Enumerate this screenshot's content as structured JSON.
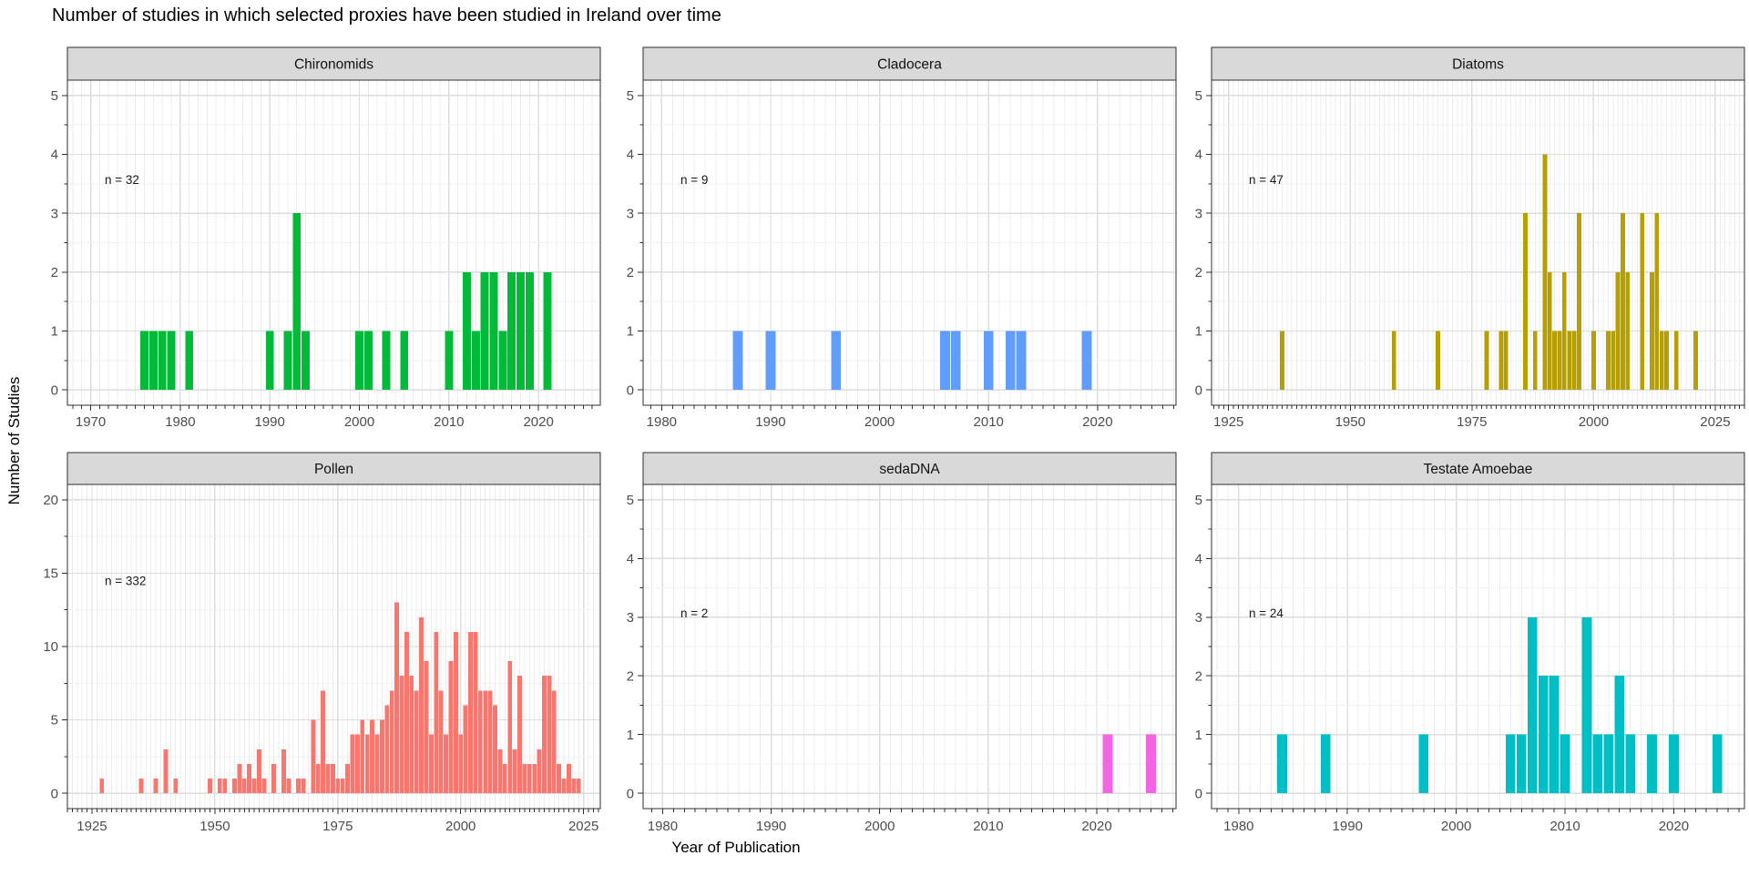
{
  "title": "Number of studies in which selected proxies have been studied in Ireland over time",
  "axes": {
    "x_title": "Year of Publication",
    "y_title": "Number of Studies"
  },
  "theme": {
    "strip_bg": "#D9D9D9",
    "panel_bg": "#FFFFFF",
    "grid_major": "#DEDEDE",
    "grid_minor_v": "#ECECEC",
    "grid_minor_h": "#F2F2F2",
    "panel_border": "#2F2F2F",
    "tick": "#2F2F2F",
    "axis_text": "#4D4D4D",
    "text": "#111111"
  },
  "chart_data": [
    {
      "type": "bar",
      "title": "Chironomids",
      "annotation": "n = 32",
      "annotation_pos": {
        "x_frac": 0.07,
        "y_value": 3.5
      },
      "color": "#00BA38",
      "x": [
        1976,
        1977,
        1978,
        1979,
        1981,
        1990,
        1992,
        1993,
        1994,
        2000,
        2001,
        2003,
        2005,
        2010,
        2012,
        2013,
        2014,
        2015,
        2016,
        2017,
        2018,
        2019,
        2021
      ],
      "values": [
        1,
        1,
        1,
        1,
        1,
        1,
        1,
        3,
        1,
        1,
        1,
        1,
        1,
        1,
        2,
        1,
        2,
        2,
        1,
        2,
        2,
        2,
        2
      ],
      "xticks": [
        1970,
        1980,
        1990,
        2000,
        2010,
        2020
      ],
      "xlim": [
        1967.4,
        2026.9
      ],
      "yticks": [
        0,
        1,
        2,
        3,
        4,
        5
      ],
      "ylim": [
        -0.26,
        5.26
      ],
      "grid": true
    },
    {
      "type": "bar",
      "title": "Cladocera",
      "annotation": "n = 9",
      "annotation_pos": {
        "x_frac": 0.07,
        "y_value": 3.5
      },
      "color": "#619CFF",
      "x": [
        1987,
        1990,
        1996,
        2006,
        2007,
        2010,
        2012,
        2013,
        2019
      ],
      "values": [
        1,
        1,
        1,
        1,
        1,
        1,
        1,
        1,
        1
      ],
      "xticks": [
        1980,
        1990,
        2000,
        2010,
        2020
      ],
      "xlim": [
        1978.3,
        2027.2
      ],
      "yticks": [
        0,
        1,
        2,
        3,
        4,
        5
      ],
      "ylim": [
        -0.26,
        5.26
      ],
      "grid": true
    },
    {
      "type": "bar",
      "title": "Diatoms",
      "annotation": "n = 47",
      "annotation_pos": {
        "x_frac": 0.07,
        "y_value": 3.5
      },
      "color": "#B79F00",
      "x": [
        1936,
        1959,
        1968,
        1978,
        1981,
        1982,
        1986,
        1988,
        1990,
        1991,
        1992,
        1993,
        1994,
        1995,
        1996,
        1997,
        2000,
        2003,
        2004,
        2005,
        2006,
        2007,
        2010,
        2012,
        2013,
        2014,
        2015,
        2017,
        2021
      ],
      "values": [
        1,
        1,
        1,
        1,
        1,
        1,
        3,
        1,
        4,
        2,
        1,
        1,
        2,
        1,
        1,
        3,
        1,
        1,
        1,
        2,
        3,
        2,
        3,
        2,
        3,
        1,
        1,
        1,
        1
      ],
      "xticks": [
        1925,
        1950,
        1975,
        2000,
        2025
      ],
      "xlim": [
        1921.5,
        2031
      ],
      "yticks": [
        0,
        1,
        2,
        3,
        4,
        5
      ],
      "ylim": [
        -0.26,
        5.26
      ],
      "grid": true
    },
    {
      "type": "bar",
      "title": "Pollen",
      "annotation": "n = 332",
      "annotation_pos": {
        "x_frac": 0.07,
        "y_value": 14.2
      },
      "color": "#F8766D",
      "x": [
        1927,
        1935,
        1938,
        1940,
        1942,
        1949,
        1951,
        1952,
        1954,
        1955,
        1956,
        1957,
        1958,
        1959,
        1960,
        1962,
        1964,
        1965,
        1967,
        1968,
        1970,
        1971,
        1972,
        1973,
        1974,
        1975,
        1976,
        1977,
        1978,
        1979,
        1980,
        1981,
        1982,
        1983,
        1984,
        1985,
        1986,
        1987,
        1988,
        1989,
        1990,
        1991,
        1992,
        1993,
        1994,
        1995,
        1996,
        1997,
        1998,
        1999,
        2000,
        2001,
        2002,
        2003,
        2004,
        2005,
        2006,
        2007,
        2008,
        2009,
        2010,
        2011,
        2012,
        2013,
        2014,
        2015,
        2016,
        2017,
        2018,
        2019,
        2020,
        2021,
        2022,
        2023,
        2024
      ],
      "values": [
        1,
        1,
        1,
        3,
        1,
        1,
        1,
        1,
        1,
        2,
        1,
        2,
        1,
        3,
        1,
        2,
        3,
        1,
        1,
        1,
        5,
        2,
        7,
        2,
        2,
        1,
        1,
        2,
        4,
        4,
        5,
        4,
        5,
        4,
        5,
        6,
        7,
        13,
        8,
        11,
        8,
        7,
        12,
        9,
        4,
        11,
        7,
        4,
        9,
        11,
        4,
        6,
        11,
        11,
        7,
        7,
        7,
        6,
        3,
        2,
        9,
        3,
        8,
        2,
        2,
        2,
        3,
        8,
        8,
        7,
        2,
        1,
        2,
        1,
        1
      ],
      "xticks": [
        1925,
        1950,
        1975,
        2000,
        2025
      ],
      "xlim": [
        1920,
        2028.4
      ],
      "yticks": [
        0,
        5,
        10,
        15,
        20
      ],
      "ylim": [
        -1.05,
        21.05
      ],
      "grid": true
    },
    {
      "type": "bar",
      "title": "sedaDNA",
      "annotation": "n = 2",
      "annotation_pos": {
        "x_frac": 0.07,
        "y_value": 3.0
      },
      "color": "#F564E3",
      "x": [
        2021,
        2025
      ],
      "values": [
        1,
        1
      ],
      "xticks": [
        1980,
        1990,
        2000,
        2010,
        2020
      ],
      "xlim": [
        1978.2,
        2027.3
      ],
      "yticks": [
        0,
        1,
        2,
        3,
        4,
        5
      ],
      "ylim": [
        -0.26,
        5.26
      ],
      "grid": true
    },
    {
      "type": "bar",
      "title": "Testate Amoebae",
      "annotation": "n = 24",
      "annotation_pos": {
        "x_frac": 0.07,
        "y_value": 3.0
      },
      "color": "#00BFC4",
      "x": [
        1984,
        1988,
        1997,
        2005,
        2006,
        2007,
        2008,
        2009,
        2010,
        2012,
        2013,
        2014,
        2015,
        2016,
        2018,
        2020,
        2024
      ],
      "values": [
        1,
        1,
        1,
        1,
        1,
        3,
        2,
        2,
        1,
        3,
        1,
        1,
        2,
        1,
        1,
        1,
        1
      ],
      "xticks": [
        1980,
        1990,
        2000,
        2010,
        2020
      ],
      "xlim": [
        1977.5,
        2026.5
      ],
      "yticks": [
        0,
        1,
        2,
        3,
        4,
        5
      ],
      "ylim": [
        -0.26,
        5.26
      ],
      "grid": true
    }
  ]
}
